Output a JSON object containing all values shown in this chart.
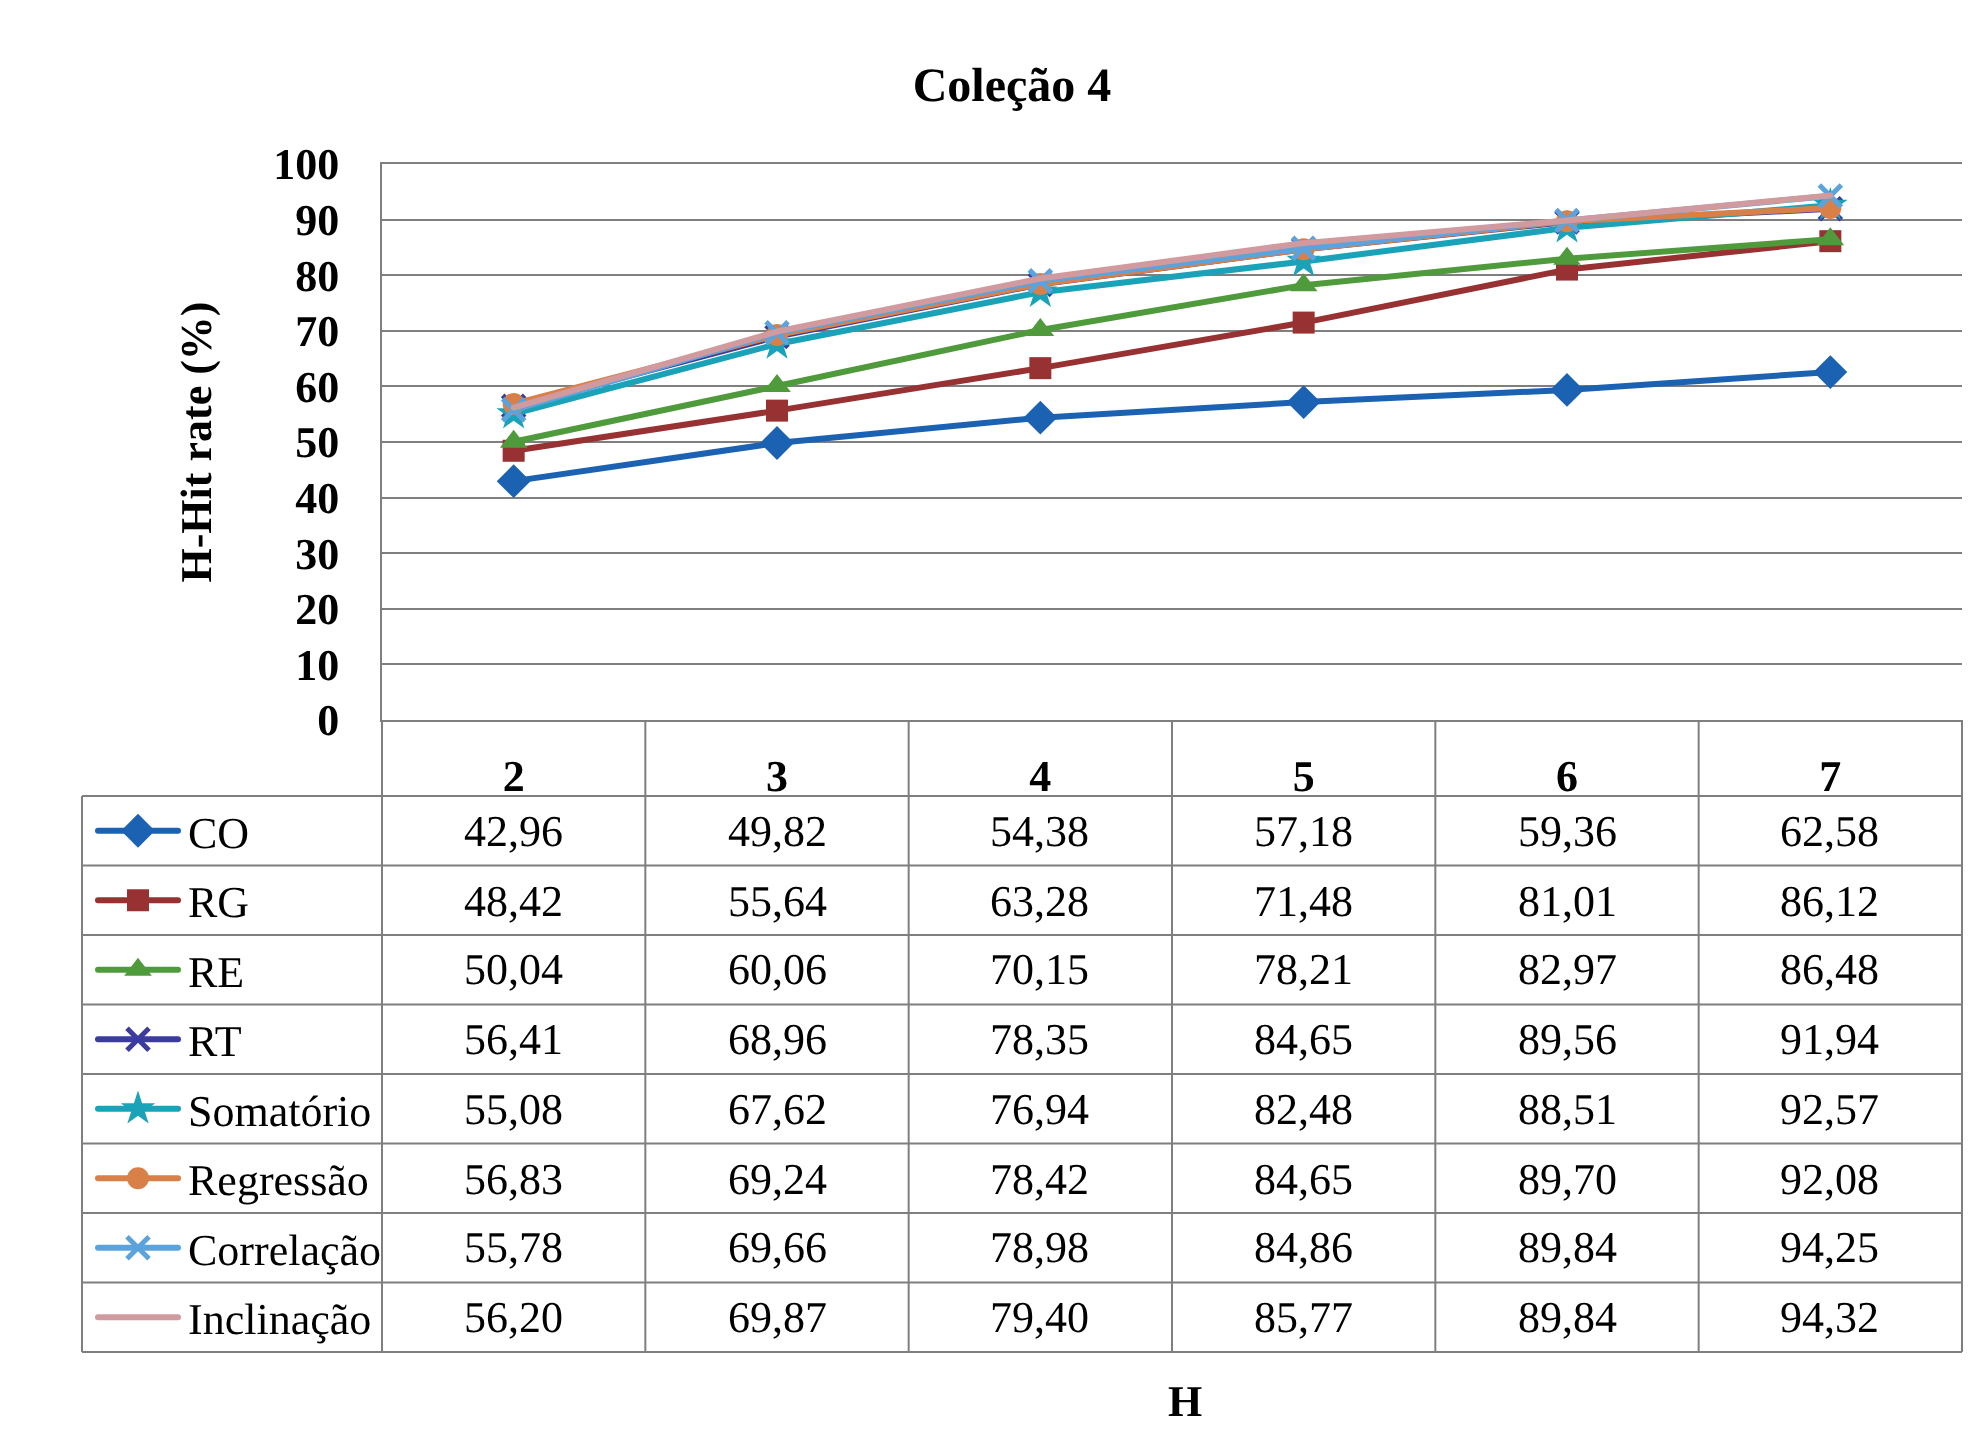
{
  "chart_data": {
    "type": "line",
    "title": "Coleção 4",
    "ylabel": "H-Hit rate (%)",
    "annotations": [
      "H"
    ],
    "categories": [
      "2",
      "3",
      "4",
      "5",
      "6",
      "7"
    ],
    "ylim": [
      0,
      100
    ],
    "yticks": [
      0,
      10,
      20,
      30,
      40,
      50,
      60,
      70,
      80,
      90,
      100
    ],
    "grid": "y",
    "legend": "bottom left",
    "series": [
      {
        "name": "CO",
        "color": "#1b62b3",
        "marker": "diamond",
        "values": [
          42.96,
          49.82,
          54.38,
          57.18,
          59.36,
          62.58
        ],
        "value_labels": [
          "42,96",
          "49,82",
          "54,38",
          "57,18",
          "59,36",
          "62,58"
        ]
      },
      {
        "name": "RG",
        "color": "#983232",
        "marker": "square",
        "values": [
          48.42,
          55.64,
          63.28,
          71.48,
          81.01,
          86.12
        ],
        "value_labels": [
          "48,42",
          "55,64",
          "63,28",
          "71,48",
          "81,01",
          "86,12"
        ]
      },
      {
        "name": "RE",
        "color": "#4f9b3c",
        "marker": "triangle",
        "values": [
          50.04,
          60.06,
          70.15,
          78.21,
          82.97,
          86.48
        ],
        "value_labels": [
          "50,04",
          "60,06",
          "70,15",
          "78,21",
          "82,97",
          "86,48"
        ]
      },
      {
        "name": "RT",
        "color": "#3b3ba0",
        "marker": "cross",
        "values": [
          56.41,
          68.96,
          78.35,
          84.65,
          89.56,
          91.94
        ],
        "value_labels": [
          "56,41",
          "68,96",
          "78,35",
          "84,65",
          "89,56",
          "91,94"
        ]
      },
      {
        "name": "Somatório",
        "color": "#1aa3b8",
        "marker": "star",
        "values": [
          55.08,
          67.62,
          76.94,
          82.48,
          88.51,
          92.57
        ],
        "value_labels": [
          "55,08",
          "67,62",
          "76,94",
          "82,48",
          "88,51",
          "92,57"
        ]
      },
      {
        "name": "Regressão",
        "color": "#d98048",
        "marker": "circle",
        "values": [
          56.83,
          69.24,
          78.42,
          84.65,
          89.7,
          92.08
        ],
        "value_labels": [
          "56,83",
          "69,24",
          "78,42",
          "84,65",
          "89,70",
          "92,08"
        ]
      },
      {
        "name": "Correlação",
        "color": "#5ba3dc",
        "marker": "cross",
        "values": [
          55.78,
          69.66,
          78.98,
          84.86,
          89.84,
          94.25
        ],
        "value_labels": [
          "55,78",
          "69,66",
          "78,98",
          "84,86",
          "89,84",
          "94,25"
        ]
      },
      {
        "name": "Inclinação",
        "color": "#d19a9e",
        "marker": "none",
        "values": [
          56.2,
          69.87,
          79.4,
          85.77,
          89.84,
          94.32
        ],
        "value_labels": [
          "56,20",
          "69,87",
          "79,40",
          "85,77",
          "89,84",
          "94,32"
        ]
      }
    ]
  }
}
